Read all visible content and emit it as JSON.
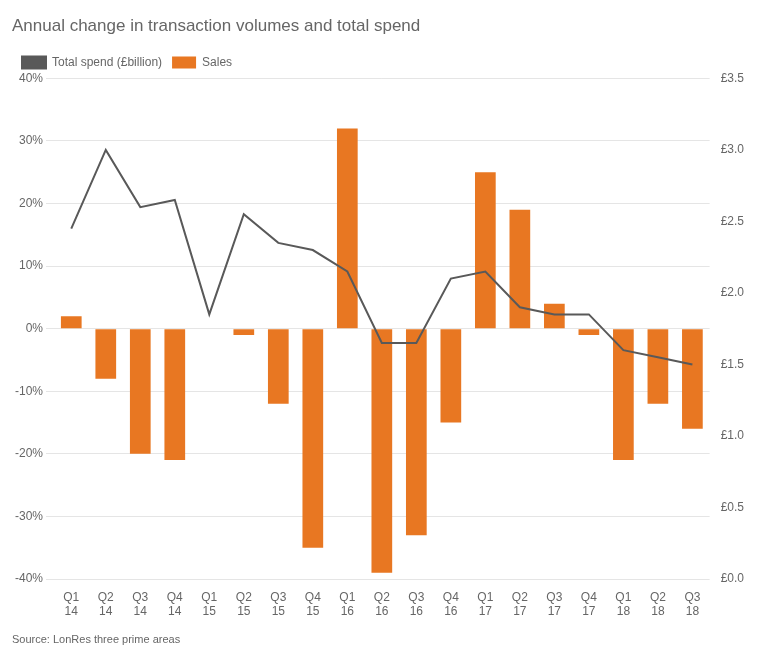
{
  "chart_data": {
    "type": "bar",
    "title": "Annual change in transaction volumes and total spend",
    "annotations": [
      "Source: LonRes three prime areas"
    ],
    "categories": [
      "Q1\n14",
      "Q2\n14",
      "Q3\n14",
      "Q4\n14",
      "Q1\n15",
      "Q2\n15",
      "Q3\n15",
      "Q4\n15",
      "Q1\n16",
      "Q2\n16",
      "Q3\n16",
      "Q4\n16",
      "Q1\n17",
      "Q2\n17",
      "Q3\n17",
      "Q4\n17",
      "Q1\n18",
      "Q2\n18",
      "Q3\n18"
    ],
    "series": [
      {
        "name": "Sales",
        "type": "bar",
        "color": "#E87722",
        "values": [
          2,
          -8,
          -20,
          -21,
          0,
          -1,
          -12,
          -35,
          32,
          -39,
          -33,
          -15,
          25,
          19,
          4,
          -1,
          -21,
          -12,
          -16
        ]
      },
      {
        "name": "Total spend (£billion)",
        "type": "line",
        "axis": "y2",
        "color": "#595959",
        "values": [
          2.45,
          3.0,
          2.6,
          2.65,
          1.85,
          2.55,
          2.35,
          2.3,
          2.15,
          1.65,
          1.65,
          2.1,
          2.15,
          1.9,
          1.85,
          1.85,
          1.6,
          1.55,
          1.5
        ]
      }
    ],
    "ylim": [
      -40,
      40
    ],
    "yticks": [
      {
        "value": -40,
        "label": "-40%"
      },
      {
        "value": -30,
        "label": "-30%"
      },
      {
        "value": -20,
        "label": "-20%"
      },
      {
        "value": -10,
        "label": "-10%"
      },
      {
        "value": 0,
        "label": "0%"
      },
      {
        "value": 10,
        "label": "10%"
      },
      {
        "value": 20,
        "label": "20%"
      },
      {
        "value": 30,
        "label": "30%"
      },
      {
        "value": 40,
        "label": "40%"
      }
    ],
    "y2lim": [
      0.0,
      3.5
    ],
    "y2ticks": [
      {
        "value": 0.0,
        "label": "£0.0"
      },
      {
        "value": 0.5,
        "label": "£0.5"
      },
      {
        "value": 1.0,
        "label": "£1.0"
      },
      {
        "value": 1.5,
        "label": "£1.5"
      },
      {
        "value": 2.0,
        "label": "£2.0"
      },
      {
        "value": 2.5,
        "label": "£2.5"
      },
      {
        "value": 3.0,
        "label": "£3.0"
      },
      {
        "value": 3.5,
        "label": "£3.5"
      }
    ],
    "grid": true,
    "legend": "upper left"
  }
}
